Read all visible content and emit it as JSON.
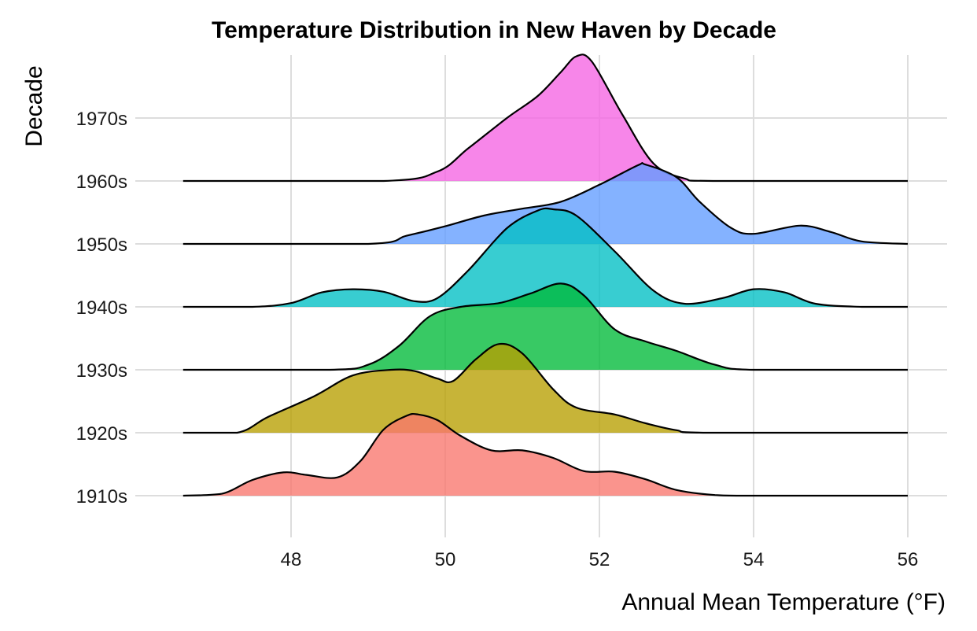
{
  "chart_data": {
    "type": "ridgeline",
    "title": "Temperature Distribution in New Haven by Decade",
    "xlabel": "Annual Mean Temperature (°F)",
    "ylabel": "Decade",
    "xlim": [
      46.0,
      56.4
    ],
    "x_ticks": [
      48,
      50,
      52,
      54,
      56
    ],
    "density_range": [
      46.6,
      56.0
    ],
    "grid": true,
    "legend": "none",
    "series": [
      {
        "name": "1910s",
        "color": "#F8766D",
        "peak_height": 1.29,
        "points": [
          [
            46.6,
            0
          ],
          [
            47.1,
            0.03
          ],
          [
            47.5,
            0.25
          ],
          [
            47.9,
            0.37
          ],
          [
            48.2,
            0.33
          ],
          [
            48.6,
            0.29
          ],
          [
            48.9,
            0.55
          ],
          [
            49.2,
            1.05
          ],
          [
            49.5,
            1.27
          ],
          [
            49.65,
            1.29
          ],
          [
            49.9,
            1.2
          ],
          [
            50.2,
            0.95
          ],
          [
            50.6,
            0.72
          ],
          [
            51.0,
            0.72
          ],
          [
            51.4,
            0.6
          ],
          [
            51.8,
            0.39
          ],
          [
            52.2,
            0.38
          ],
          [
            52.6,
            0.26
          ],
          [
            53.0,
            0.09
          ],
          [
            53.5,
            0.01
          ],
          [
            54.0,
            0
          ],
          [
            56.0,
            0
          ]
        ]
      },
      {
        "name": "1920s",
        "color": "#B79F00",
        "peak_height": 1.41,
        "points": [
          [
            46.6,
            0
          ],
          [
            47.3,
            0
          ],
          [
            47.7,
            0.25
          ],
          [
            48.3,
            0.58
          ],
          [
            48.8,
            0.91
          ],
          [
            49.3,
            1.0
          ],
          [
            49.6,
            0.98
          ],
          [
            49.9,
            0.86
          ],
          [
            50.1,
            0.82
          ],
          [
            50.4,
            1.17
          ],
          [
            50.7,
            1.41
          ],
          [
            51.0,
            1.26
          ],
          [
            51.4,
            0.69
          ],
          [
            51.7,
            0.4
          ],
          [
            52.2,
            0.29
          ],
          [
            52.6,
            0.15
          ],
          [
            53.0,
            0.04
          ],
          [
            53.4,
            0
          ],
          [
            56.0,
            0
          ]
        ]
      },
      {
        "name": "1930s",
        "color": "#00BA38",
        "peak_height": 1.37,
        "points": [
          [
            46.6,
            0
          ],
          [
            48.5,
            0
          ],
          [
            49.0,
            0.08
          ],
          [
            49.4,
            0.38
          ],
          [
            49.8,
            0.85
          ],
          [
            50.2,
            1.0
          ],
          [
            50.7,
            1.06
          ],
          [
            51.1,
            1.21
          ],
          [
            51.5,
            1.37
          ],
          [
            51.8,
            1.18
          ],
          [
            52.2,
            0.64
          ],
          [
            52.6,
            0.45
          ],
          [
            53.0,
            0.3
          ],
          [
            53.5,
            0.08
          ],
          [
            54.0,
            0
          ],
          [
            56.0,
            0
          ]
        ]
      },
      {
        "name": "1940s",
        "color": "#00BFC4",
        "peak_height": 1.55,
        "points": [
          [
            46.6,
            0
          ],
          [
            47.5,
            0
          ],
          [
            48.0,
            0.06
          ],
          [
            48.4,
            0.23
          ],
          [
            48.8,
            0.28
          ],
          [
            49.2,
            0.24
          ],
          [
            49.6,
            0.09
          ],
          [
            49.9,
            0.14
          ],
          [
            50.3,
            0.58
          ],
          [
            50.8,
            1.25
          ],
          [
            51.2,
            1.53
          ],
          [
            51.4,
            1.55
          ],
          [
            51.7,
            1.45
          ],
          [
            52.2,
            0.88
          ],
          [
            52.7,
            0.26
          ],
          [
            53.1,
            0.05
          ],
          [
            53.6,
            0.14
          ],
          [
            54.0,
            0.28
          ],
          [
            54.4,
            0.23
          ],
          [
            54.8,
            0.05
          ],
          [
            55.4,
            0
          ],
          [
            56.0,
            0
          ]
        ]
      },
      {
        "name": "1950s",
        "color": "#619CFF",
        "peak_height": 1.26,
        "points": [
          [
            46.6,
            0
          ],
          [
            49.0,
            0
          ],
          [
            49.5,
            0.13
          ],
          [
            50.0,
            0.28
          ],
          [
            50.5,
            0.45
          ],
          [
            51.0,
            0.56
          ],
          [
            51.5,
            0.67
          ],
          [
            52.0,
            0.94
          ],
          [
            52.5,
            1.25
          ],
          [
            52.6,
            1.26
          ],
          [
            53.0,
            1.06
          ],
          [
            53.3,
            0.67
          ],
          [
            53.7,
            0.26
          ],
          [
            54.0,
            0.16
          ],
          [
            54.6,
            0.29
          ],
          [
            55.0,
            0.19
          ],
          [
            55.4,
            0.04
          ],
          [
            56.0,
            0
          ]
        ]
      },
      {
        "name": "1960s",
        "color": "#F564E3",
        "peak_height": 1.98,
        "points": [
          [
            46.6,
            0
          ],
          [
            49.2,
            0
          ],
          [
            49.9,
            0.15
          ],
          [
            50.3,
            0.52
          ],
          [
            50.8,
            1.0
          ],
          [
            51.2,
            1.35
          ],
          [
            51.5,
            1.73
          ],
          [
            51.7,
            1.98
          ],
          [
            51.9,
            1.9
          ],
          [
            52.3,
            1.05
          ],
          [
            52.7,
            0.28
          ],
          [
            53.1,
            0.04
          ],
          [
            53.5,
            0
          ],
          [
            56.0,
            0
          ]
        ]
      }
    ],
    "decade_axis_labels": [
      "1910s",
      "1920s",
      "1930s",
      "1940s",
      "1950s",
      "1960s",
      "1970s"
    ]
  }
}
